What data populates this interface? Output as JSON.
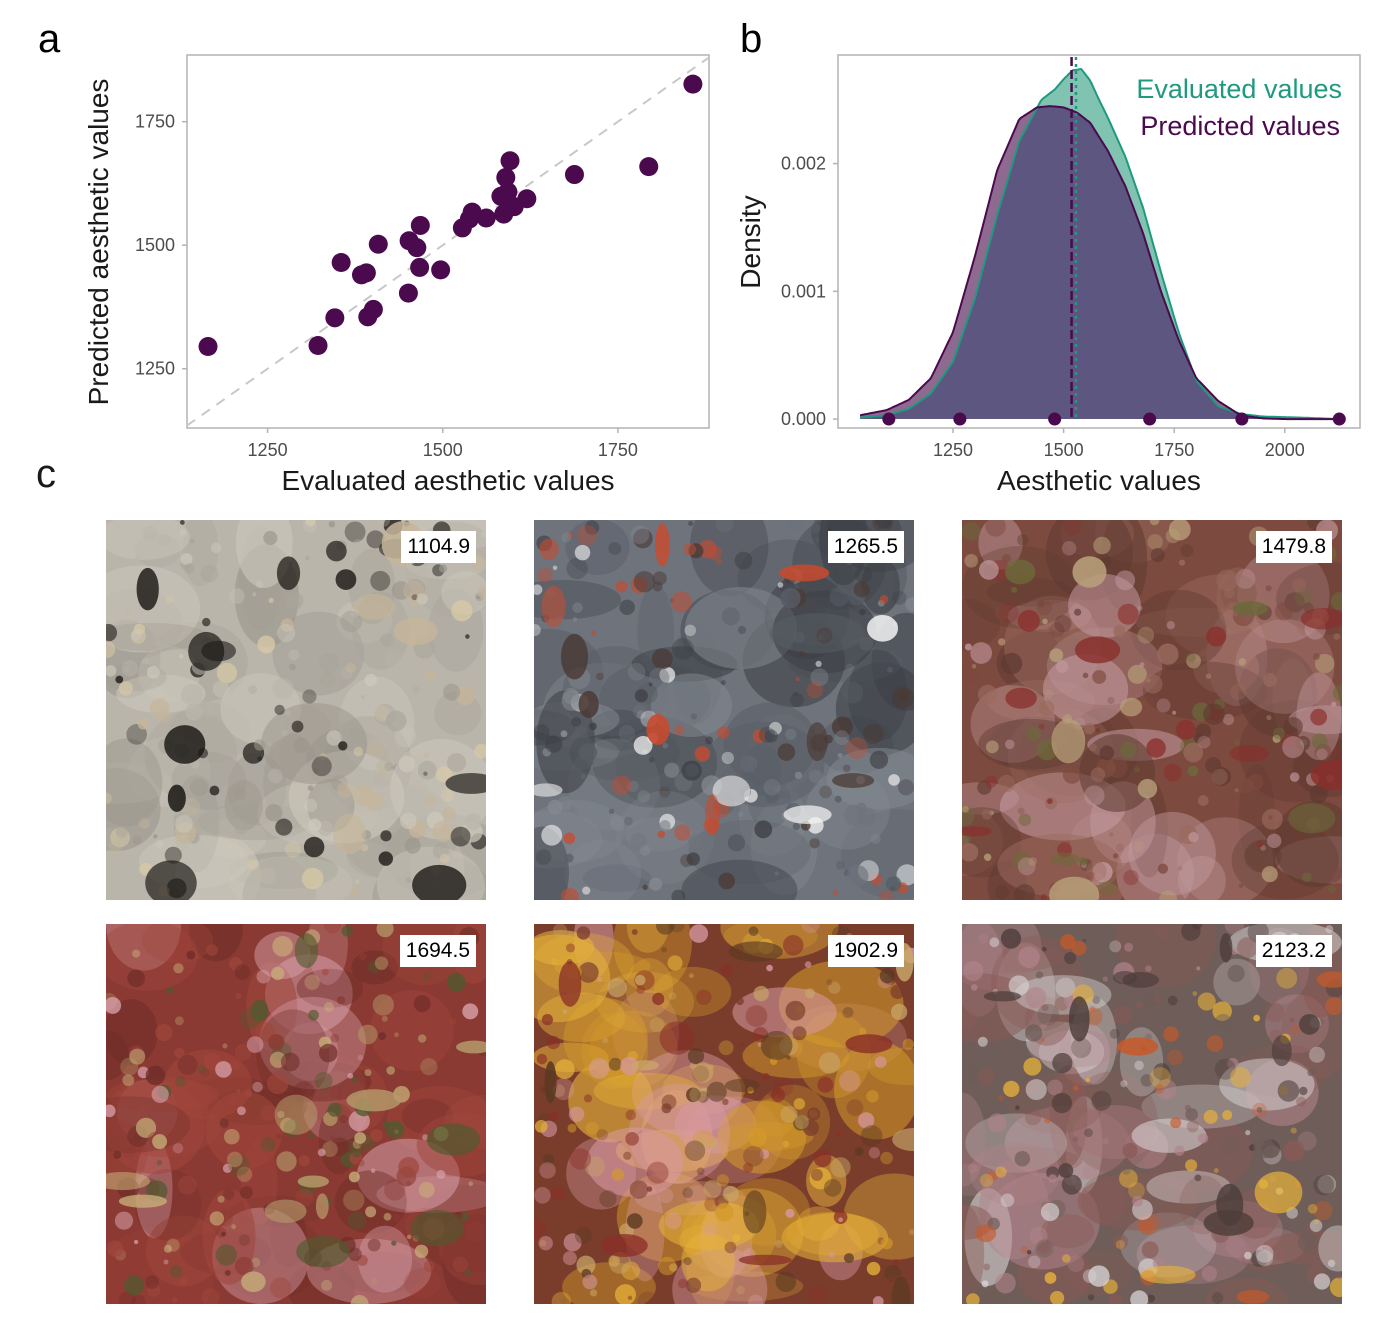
{
  "panels": {
    "a": "a",
    "b": "b",
    "c": "c"
  },
  "colors": {
    "points": "#4a0a4d",
    "evaluated": "#1f9a7e",
    "evaluated_fill": "#7fc3b0",
    "predicted": "#4a0a4d",
    "predicted_fill": "#8e6a90",
    "overlap_fill": "#5c5680"
  },
  "chart_data": [
    {
      "type": "scatter",
      "xlabel": "Evaluated aesthetic values",
      "ylabel": "Predicted aesthetic values",
      "xlim": [
        1135,
        1880
      ],
      "ylim": [
        1130,
        1885
      ],
      "xticks": [
        1250,
        1500,
        1750
      ],
      "yticks": [
        1250,
        1500,
        1750
      ],
      "identity_line": true,
      "grid": false,
      "points": [
        {
          "x": 1165,
          "y": 1295
        },
        {
          "x": 1322,
          "y": 1297
        },
        {
          "x": 1346,
          "y": 1353
        },
        {
          "x": 1355,
          "y": 1465
        },
        {
          "x": 1384,
          "y": 1440
        },
        {
          "x": 1391,
          "y": 1444
        },
        {
          "x": 1393,
          "y": 1355
        },
        {
          "x": 1401,
          "y": 1370
        },
        {
          "x": 1408,
          "y": 1502
        },
        {
          "x": 1451,
          "y": 1403
        },
        {
          "x": 1452,
          "y": 1509
        },
        {
          "x": 1463,
          "y": 1495
        },
        {
          "x": 1467,
          "y": 1455
        },
        {
          "x": 1468,
          "y": 1540
        },
        {
          "x": 1497,
          "y": 1450
        },
        {
          "x": 1528,
          "y": 1535
        },
        {
          "x": 1538,
          "y": 1553
        },
        {
          "x": 1542,
          "y": 1567
        },
        {
          "x": 1562,
          "y": 1555
        },
        {
          "x": 1583,
          "y": 1599
        },
        {
          "x": 1587,
          "y": 1563
        },
        {
          "x": 1590,
          "y": 1637
        },
        {
          "x": 1593,
          "y": 1608
        },
        {
          "x": 1596,
          "y": 1671
        },
        {
          "x": 1602,
          "y": 1578
        },
        {
          "x": 1620,
          "y": 1594
        },
        {
          "x": 1688,
          "y": 1643
        },
        {
          "x": 1794,
          "y": 1659
        },
        {
          "x": 1857,
          "y": 1826
        }
      ]
    },
    {
      "type": "area",
      "xlabel": "Aesthetic values",
      "ylabel": "Density",
      "xlim": [
        990,
        2170
      ],
      "ylim": [
        -7e-05,
        0.00285
      ],
      "xticks": [
        1250,
        1500,
        1750,
        2000
      ],
      "yticks": [
        "0.000",
        "0.001",
        "0.002"
      ],
      "ytick_values": [
        0,
        0.001,
        0.002
      ],
      "legend_position": "top-right",
      "series": [
        {
          "name": "Evaluated values",
          "mean": 1528,
          "x": [
            1040,
            1100,
            1150,
            1200,
            1250,
            1300,
            1350,
            1400,
            1450,
            1480,
            1500,
            1520,
            1540,
            1560,
            1580,
            1600,
            1640,
            1680,
            1720,
            1760,
            1800,
            1850,
            1900,
            1950,
            2000,
            2050,
            2100,
            2130
          ],
          "y": [
            1e-05,
            3e-05,
            8e-05,
            0.0002,
            0.00045,
            0.00095,
            0.0016,
            0.00218,
            0.0025,
            0.00258,
            0.00266,
            0.00273,
            0.00274,
            0.00265,
            0.0025,
            0.00236,
            0.00205,
            0.00165,
            0.00115,
            0.00068,
            0.0003,
            0.0001,
            4e-05,
            2e-05,
            1.5e-05,
            1e-05,
            3e-06,
            0.0
          ]
        },
        {
          "name": "Predicted values",
          "mean": 1518,
          "x": [
            1040,
            1100,
            1150,
            1200,
            1250,
            1300,
            1350,
            1400,
            1440,
            1470,
            1500,
            1530,
            1560,
            1600,
            1640,
            1680,
            1720,
            1760,
            1800,
            1850,
            1900,
            1950,
            2000,
            2050,
            2100,
            2130
          ],
          "y": [
            3e-05,
            7e-05,
            0.00015,
            0.00032,
            0.00068,
            0.00128,
            0.00195,
            0.00235,
            0.00244,
            0.00245,
            0.00244,
            0.0024,
            0.00232,
            0.0021,
            0.00182,
            0.00145,
            0.001,
            0.00062,
            0.00032,
            0.00014,
            3e-05,
            5e-06,
            0.0,
            0.0,
            0.0,
            0.0
          ]
        }
      ],
      "rug_points": [
        1104.9,
        1265.5,
        1479.8,
        1694.5,
        1902.9,
        2123.2
      ]
    }
  ],
  "photos": [
    {
      "label": "1104.9",
      "palette": [
        "#b9b5ab",
        "#a9a59b",
        "#cdc8bc",
        "#9a968c",
        "#1a1714",
        "#d8c9a6",
        "#c6b59a"
      ]
    },
    {
      "label": "1265.5",
      "palette": [
        "#6e737c",
        "#585d66",
        "#858a92",
        "#3d3f45",
        "#f2f2f2",
        "#c84a2e",
        "#4a3a35"
      ]
    },
    {
      "label": "1479.8",
      "palette": [
        "#7d4a3f",
        "#5e3a30",
        "#9a6a5e",
        "#c39aa0",
        "#b8a07a",
        "#8a2f2c",
        "#6b6a3a"
      ]
    },
    {
      "label": "1694.5",
      "palette": [
        "#8a3a32",
        "#a0463c",
        "#6e2d28",
        "#d9a3ad",
        "#b59a6a",
        "#4f5a2f",
        "#c9b07a"
      ]
    },
    {
      "label": "1902.9",
      "palette": [
        "#7a3d2c",
        "#d49a2a",
        "#e6b23a",
        "#d79aa4",
        "#8a2f27",
        "#5a3a22",
        "#c9a76a"
      ]
    },
    {
      "label": "2123.2",
      "palette": [
        "#6e5d58",
        "#d9d5d6",
        "#8a5a56",
        "#b0838a",
        "#e8b33a",
        "#c45a2a",
        "#4d3d3a"
      ]
    }
  ]
}
